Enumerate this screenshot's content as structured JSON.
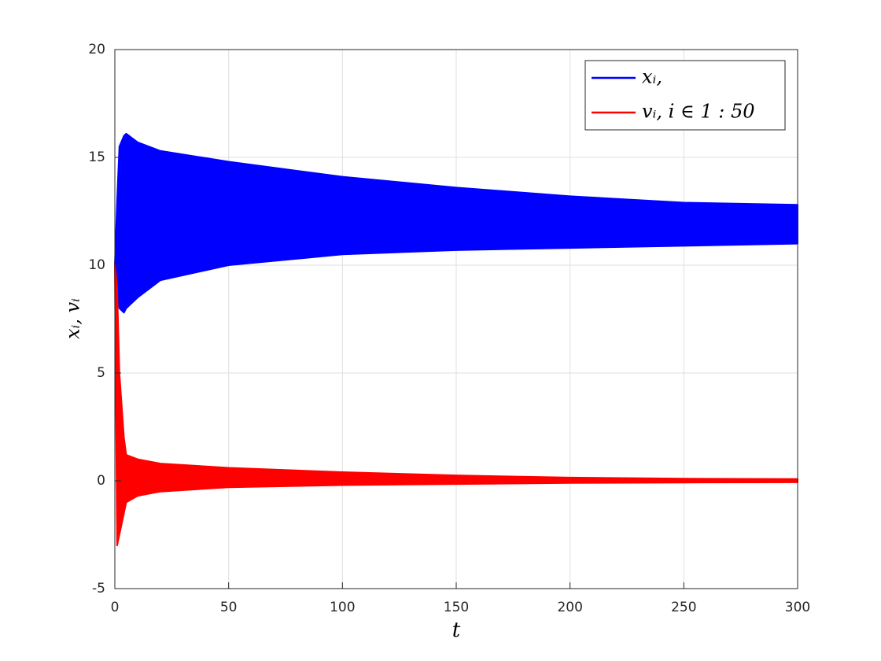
{
  "chart_data": {
    "type": "band",
    "xlabel": "t",
    "ylabel": "xᵢ,   vᵢ",
    "xlim": [
      0,
      300
    ],
    "xticks": [
      0,
      50,
      100,
      150,
      200,
      250,
      300
    ],
    "ylim": [
      -5,
      20
    ],
    "yticks": [
      -5,
      0,
      5,
      10,
      15,
      20
    ],
    "grid": true,
    "legend": "upper right",
    "x": [
      0,
      1,
      2,
      4,
      5,
      10,
      20,
      50,
      100,
      150,
      200,
      250,
      300
    ],
    "series": [
      {
        "name": "xᵢ,",
        "color": "#0000ff",
        "upper": [
          10,
          13,
          15.5,
          16,
          16.1,
          15.7,
          15.3,
          14.8,
          14.1,
          13.6,
          13.2,
          12.9,
          12.8
        ],
        "lower": [
          10,
          9,
          8,
          7.8,
          8,
          8.5,
          9.3,
          10,
          10.5,
          10.7,
          10.8,
          10.9,
          11
        ]
      },
      {
        "name": "vᵢ,  i ∈ 1 : 50",
        "color": "#ff0000",
        "upper": [
          10,
          9,
          5,
          2,
          1.2,
          1,
          0.8,
          0.6,
          0.4,
          0.25,
          0.15,
          0.1,
          0.08
        ],
        "lower": [
          10,
          -3,
          -2.5,
          -1.5,
          -1,
          -0.7,
          -0.5,
          -0.3,
          -0.2,
          -0.15,
          -0.1,
          -0.08,
          -0.07
        ]
      }
    ]
  }
}
